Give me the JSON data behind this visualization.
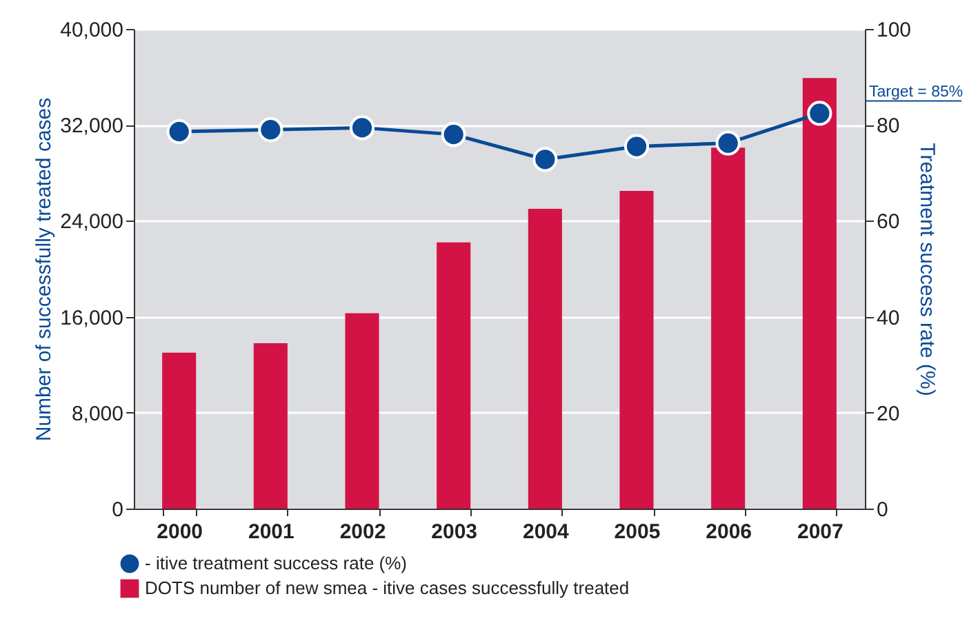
{
  "chart_data": {
    "type": "bar",
    "categories": [
      "2000",
      "2001",
      "2002",
      "2003",
      "2004",
      "2005",
      "2006",
      "2007"
    ],
    "ylabel": "Number of successfully treated cases",
    "y2label": "Treatment success rate (%)",
    "ylim": [
      0,
      40000
    ],
    "yticks": [
      0,
      {
        "value": 8000,
        "label": "8,000"
      },
      {
        "value": 16000,
        "label": "16,000"
      },
      {
        "value": 24000,
        "label": "24,000"
      },
      {
        "value": 32000,
        "label": "32,000"
      },
      {
        "value": 40000,
        "label": "40,000"
      }
    ],
    "y2lim": [
      0,
      100
    ],
    "y2ticks": [
      0,
      20,
      40,
      60,
      80,
      100
    ],
    "series": [
      {
        "name": "DOTS number of new smea - itive cases successfully treated",
        "color": "#d31245",
        "values": [
          13000,
          13800,
          16300,
          22200,
          25000,
          26500,
          30100,
          35900
        ]
      },
      {
        "name": "- itive treatment success rate (%)",
        "type": "line",
        "axis": "y2",
        "color": "#0a4a96",
        "values": [
          78.6,
          79.0,
          79.4,
          78.0,
          72.8,
          75.5,
          76.2,
          82.4
        ]
      }
    ],
    "ref_lines": [
      {
        "axis": "y2",
        "value": 85,
        "label": "Target = 85%",
        "color": "#0a4a96"
      }
    ],
    "grid": "y",
    "legend": "bottom left",
    "marker": "circle"
  }
}
